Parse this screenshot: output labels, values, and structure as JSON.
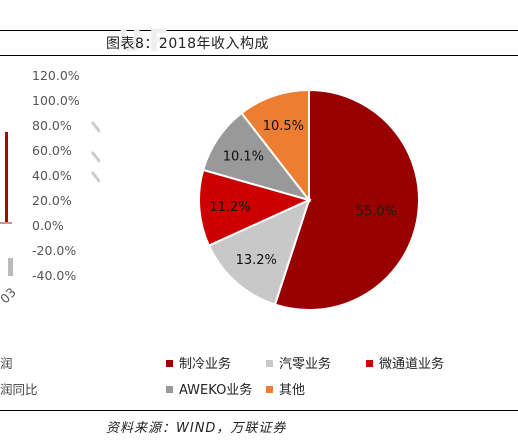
{
  "title": "图表8：2018年收入构成",
  "source": "资料来源：WIND，万联证券",
  "left_panel": {
    "y_ticks": [
      "120.0%",
      "100.0%",
      "80.0%",
      "60.0%",
      "40.0%",
      "20.0%",
      "0.0%",
      "-20.0%",
      "-40.0%"
    ],
    "x_tick": "03",
    "legend": [
      "润",
      "润同比"
    ]
  },
  "colors": {
    "refrigeration": "#990000",
    "auto_parts": "#c8c8c8",
    "microchannel": "#cc0000",
    "aweko": "#999999",
    "other": "#ed7d31"
  },
  "chart_data": {
    "type": "pie",
    "title": "图表8：2018年收入构成",
    "slices": [
      {
        "name": "制冷业务",
        "value": 55.0,
        "label": "55.0%",
        "color": "#990000"
      },
      {
        "name": "汽零业务",
        "value": 13.2,
        "label": "13.2%",
        "color": "#c8c8c8"
      },
      {
        "name": "微通道业务",
        "value": 11.2,
        "label": "11.2%",
        "color": "#cc0000"
      },
      {
        "name": "AWEKO业务",
        "value": 10.1,
        "label": "10.1%",
        "color": "#999999"
      },
      {
        "name": "其他",
        "value": 10.5,
        "label": "10.5%",
        "color": "#ed7d31"
      }
    ],
    "legend_position": "bottom"
  }
}
